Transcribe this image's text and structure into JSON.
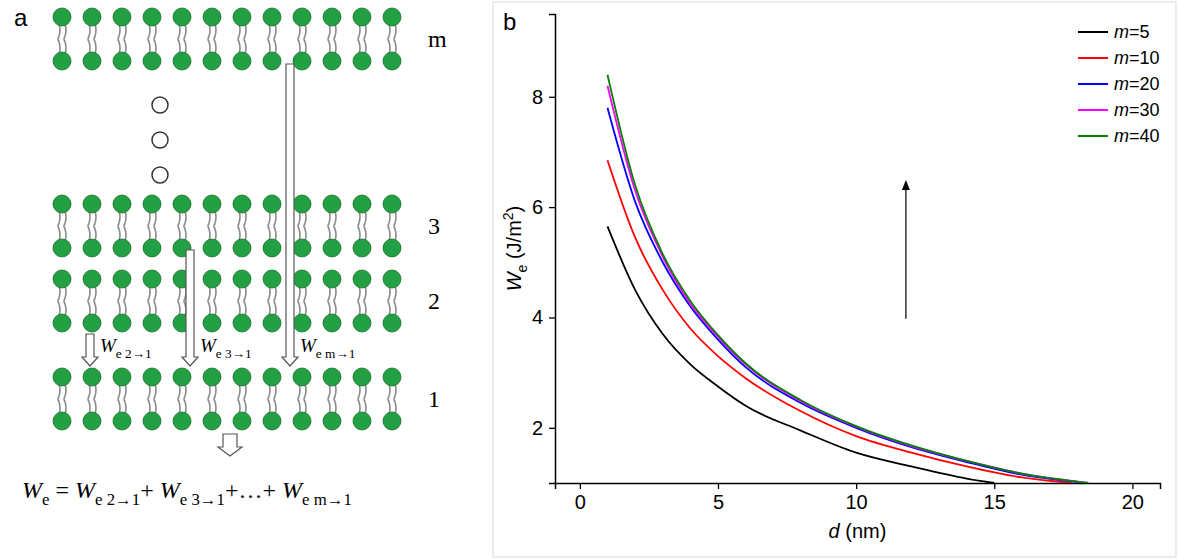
{
  "chart_data": {
    "type": "line",
    "panel_label": "b",
    "x_label": [
      {
        "text": "d",
        "style": "italic"
      },
      {
        "text": " (nm)"
      }
    ],
    "y_label": [
      {
        "text": "W",
        "style": "italic"
      },
      {
        "text": "e",
        "style": "sub"
      },
      {
        "text": " (J/m"
      },
      {
        "text": "2",
        "style": "sup"
      },
      {
        "text": ")"
      }
    ],
    "xlim": [
      -0.9,
      21
    ],
    "xticks": [
      0,
      5,
      10,
      15,
      20
    ],
    "ylim": [
      1,
      9.5
    ],
    "yticks": [
      2,
      4,
      6,
      8
    ],
    "legend": "top-right",
    "series": [
      {
        "name": "m=5",
        "color": "#000000",
        "x": [
          1,
          2,
          3,
          4,
          5,
          6,
          8,
          10,
          12,
          14,
          15
        ],
        "values": [
          5.65,
          4.5,
          3.7,
          3.15,
          2.75,
          2.4,
          1.95,
          1.55,
          1.3,
          1.08,
          1.0
        ]
      },
      {
        "name": "m=10",
        "color": "#ff0000",
        "x": [
          1,
          2,
          3,
          4,
          5,
          6,
          8,
          10,
          12,
          14,
          16,
          17.8
        ],
        "values": [
          6.85,
          5.45,
          4.5,
          3.8,
          3.3,
          2.9,
          2.3,
          1.85,
          1.55,
          1.3,
          1.1,
          1.0
        ]
      },
      {
        "name": "m=20",
        "color": "#0000ff",
        "x": [
          1,
          2,
          3,
          4,
          5,
          6,
          8,
          10,
          12,
          14,
          16,
          18.3
        ],
        "values": [
          7.8,
          6.1,
          5.0,
          4.2,
          3.6,
          3.1,
          2.45,
          2.0,
          1.65,
          1.38,
          1.15,
          1.0
        ]
      },
      {
        "name": "m=30",
        "color": "#ff00ff",
        "x": [
          1,
          2,
          3,
          4,
          5,
          6,
          8,
          10,
          12,
          14,
          16,
          18.4
        ],
        "values": [
          8.2,
          6.3,
          5.1,
          4.25,
          3.65,
          3.15,
          2.48,
          2.02,
          1.67,
          1.4,
          1.17,
          1.0
        ]
      },
      {
        "name": "m=40",
        "color": "#008000",
        "x": [
          1,
          2,
          3,
          4,
          5,
          6,
          8,
          10,
          12,
          14,
          16,
          18.4
        ],
        "values": [
          8.4,
          6.4,
          5.15,
          4.3,
          3.68,
          3.17,
          2.5,
          2.03,
          1.68,
          1.4,
          1.17,
          1.0
        ]
      }
    ]
  },
  "diagram": {
    "panel_label": "a",
    "layers": [
      "m",
      "3",
      "2",
      "1"
    ],
    "arrow_labels": [
      [
        {
          "text": "W",
          "style": "italic"
        },
        {
          "text": "e 2→1",
          "style": "sub"
        }
      ],
      [
        {
          "text": "W",
          "style": "italic"
        },
        {
          "text": "e 3→1",
          "style": "sub"
        }
      ],
      [
        {
          "text": "W",
          "style": "italic"
        },
        {
          "text": "e m→1",
          "style": "sub"
        }
      ]
    ],
    "equation": [
      {
        "text": "W",
        "style": "italic"
      },
      {
        "text": "e",
        "style": "sub"
      },
      {
        "text": " = "
      },
      {
        "text": "W",
        "style": "italic"
      },
      {
        "text": "e 2→1",
        "style": "sub"
      },
      {
        "text": "+ "
      },
      {
        "text": "W",
        "style": "italic"
      },
      {
        "text": "e 3→1",
        "style": "sub"
      },
      {
        "text": "+…+ "
      },
      {
        "text": "W",
        "style": "italic"
      },
      {
        "text": "e m→1",
        "style": "sub"
      }
    ]
  }
}
